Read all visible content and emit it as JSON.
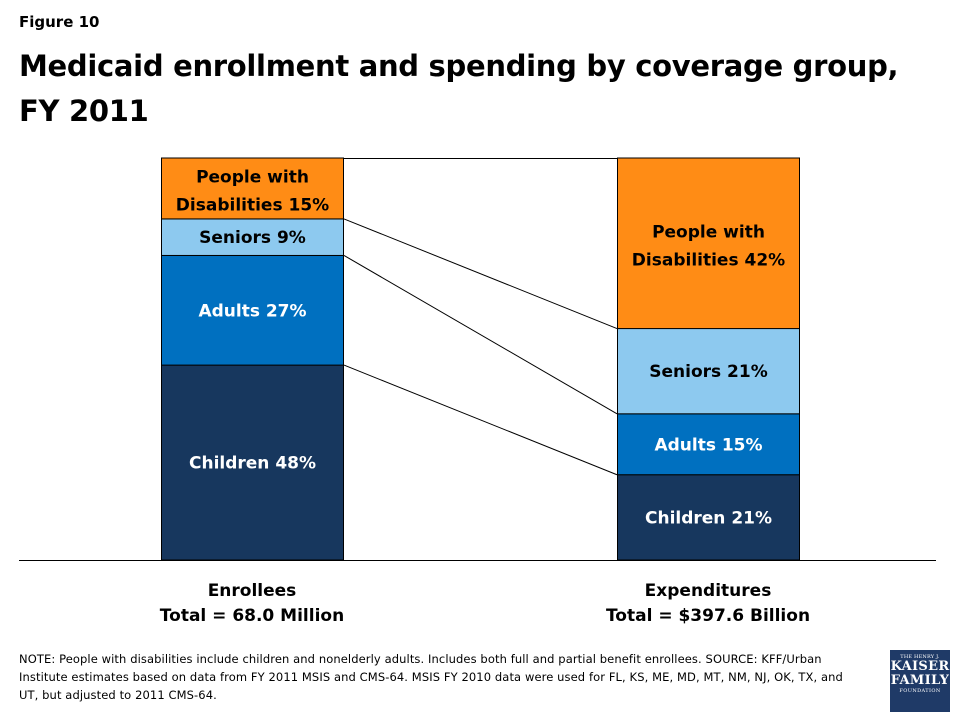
{
  "figure_label": "Figure 10",
  "title": "Medicaid enrollment and spending by coverage group, FY 2011",
  "chart_data": {
    "type": "bar",
    "stacked": true,
    "normalized_percent": true,
    "categories": [
      "Enrollees",
      "Expenditures"
    ],
    "category_labels": [
      {
        "line1": "Enrollees",
        "line2": "Total = 68.0 Million"
      },
      {
        "line1": "Expenditures",
        "line2": "Total = $397.6 Billion"
      }
    ],
    "series": [
      {
        "name": "Children",
        "values": [
          48,
          21
        ],
        "color": "#17375e",
        "labels": [
          "Children 48%",
          "Children 21%"
        ]
      },
      {
        "name": "Adults",
        "values": [
          27,
          15
        ],
        "color": "#0070c0",
        "labels": [
          "Adults 27%",
          "Adults 15%"
        ]
      },
      {
        "name": "Seniors",
        "values": [
          9,
          21
        ],
        "color": "#8dc9ef",
        "labels": [
          "Seniors 9%",
          "Seniors 21%"
        ]
      },
      {
        "name": "People with Disabilities",
        "values": [
          15,
          42
        ],
        "color": "#ff8c15",
        "labels": [
          "People with Disabilities 15%",
          "People with Disabilities 42%"
        ]
      }
    ],
    "ylim": [
      0,
      100
    ],
    "grid": false,
    "legend": "none"
  },
  "note": "NOTE:  People with disabilities include children and nonelderly adults.  Includes both full and partial benefit enrollees.  SOURCE: KFF/Urban Institute estimates based on data from FY 2011 MSIS and CMS-64. MSIS FY 2010 data were used for FL, KS, ME, MD, MT, NM, NJ, OK, TX, and UT, but adjusted to 2011 CMS-64.",
  "logo": {
    "top": "THE HENRY J.",
    "line1": "KAISER",
    "line2": "FAMILY",
    "bottom": "FOUNDATION"
  }
}
